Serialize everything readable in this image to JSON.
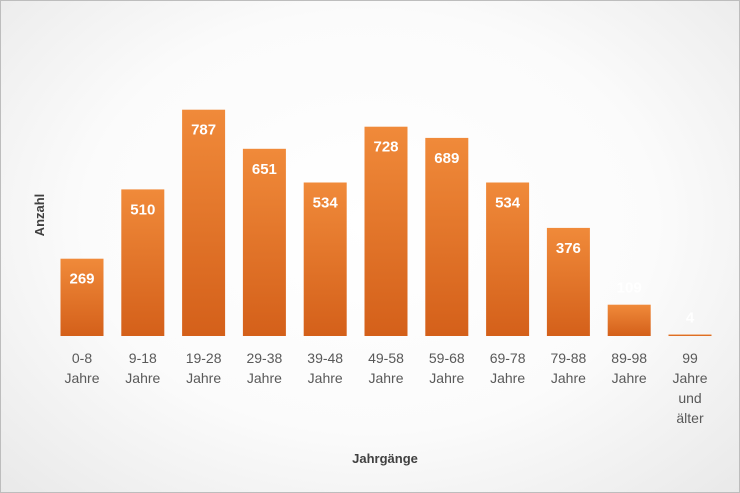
{
  "chart_data": {
    "type": "bar",
    "title": "",
    "xlabel": "Jahrgänge",
    "ylabel": "Anzahl",
    "categories": [
      [
        "0-8",
        "Jahre"
      ],
      [
        "9-18",
        "Jahre"
      ],
      [
        "19-28",
        "Jahre"
      ],
      [
        "29-38",
        "Jahre"
      ],
      [
        "39-48",
        "Jahre"
      ],
      [
        "49-58",
        "Jahre"
      ],
      [
        "59-68",
        "Jahre"
      ],
      [
        "69-78",
        "Jahre"
      ],
      [
        "79-88",
        "Jahre"
      ],
      [
        "89-98",
        "Jahre"
      ],
      [
        "99",
        "Jahre",
        "und",
        "älter"
      ]
    ],
    "values": [
      269,
      510,
      787,
      651,
      534,
      728,
      689,
      534,
      376,
      109,
      4
    ],
    "ylim": [
      0,
      800
    ],
    "grid": false,
    "legend": "none",
    "colors": {
      "bar_top": "#f08a3a",
      "bar_bottom": "#d4601a",
      "data_label": "#ffffff",
      "tick_label": "#595959",
      "axis_title": "#404040"
    }
  }
}
